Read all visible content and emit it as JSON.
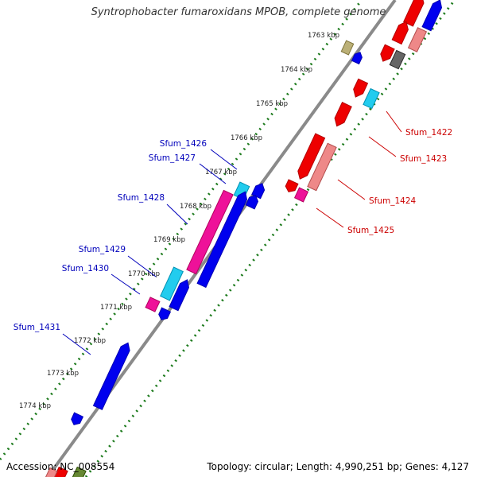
{
  "title": "Syntrophobacter fumaroxidans MPOB, complete genome",
  "footer": {
    "accession": "Accession: NC_008554",
    "summary": "Topology: circular; Length: 4,990,251 bp; Genes: 4,127"
  },
  "colors": {
    "backbone": "#8a8a8a",
    "tick": "#1c7a1c",
    "forward_label": "#cc0000",
    "reverse_label": "#0000bb",
    "red": "#ee0000",
    "salmon": "#ee8888",
    "magenta": "#ee1199",
    "cyan": "#22ccee",
    "blue": "#0000ee",
    "khaki": "#bbb077",
    "gray": "#666666",
    "olive": "#668833"
  },
  "scale_ticks": [
    {
      "kbp": 1763,
      "label": "1763 kbp"
    },
    {
      "kbp": 1764,
      "label": "1764 kbp"
    },
    {
      "kbp": 1765,
      "label": "1765 kbp"
    },
    {
      "kbp": 1766,
      "label": "1766 kbp"
    },
    {
      "kbp": 1767,
      "label": "1767 kbp"
    },
    {
      "kbp": 1768,
      "label": "1768 kbp"
    },
    {
      "kbp": 1769,
      "label": "1769 kbp"
    },
    {
      "kbp": 1770,
      "label": "1770 kbp"
    },
    {
      "kbp": 1771,
      "label": "1771 kbp"
    },
    {
      "kbp": 1772,
      "label": "1772 kbp"
    },
    {
      "kbp": 1773,
      "label": "1773 kbp"
    },
    {
      "kbp": 1774,
      "label": "1774 kbp"
    }
  ],
  "labeled_genes": [
    {
      "name": "Sfum_1422",
      "strand": "forward"
    },
    {
      "name": "Sfum_1423",
      "strand": "forward"
    },
    {
      "name": "Sfum_1424",
      "strand": "forward"
    },
    {
      "name": "Sfum_1425",
      "strand": "forward"
    },
    {
      "name": "Sfum_1426",
      "strand": "reverse"
    },
    {
      "name": "Sfum_1427",
      "strand": "reverse"
    },
    {
      "name": "Sfum_1428",
      "strand": "reverse"
    },
    {
      "name": "Sfum_1429",
      "strand": "reverse"
    },
    {
      "name": "Sfum_1430",
      "strand": "reverse"
    },
    {
      "name": "Sfum_1431",
      "strand": "reverse"
    }
  ]
}
